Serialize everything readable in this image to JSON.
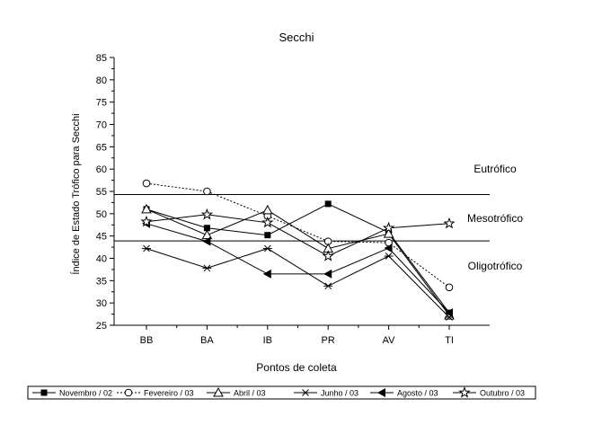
{
  "chart_data": {
    "type": "line",
    "title": "Secchi",
    "xlabel": "Pontos de coleta",
    "ylabel": "Índice de Estado Trófico para Secchi",
    "categories": [
      "BB",
      "BA",
      "IB",
      "PR",
      "AV",
      "TI"
    ],
    "ylim": [
      25,
      85
    ],
    "yticks": [
      25,
      30,
      35,
      40,
      45,
      50,
      55,
      60,
      65,
      70,
      75,
      80,
      85
    ],
    "grid": false,
    "legend_position": "bottom",
    "reference_lines": [
      {
        "value": 54.3
      },
      {
        "value": 43.9
      }
    ],
    "zones": [
      {
        "label": "Eutrófico",
        "y": 60
      },
      {
        "label": "Mesotrófico",
        "y": 49
      },
      {
        "label": "Oligotrófico",
        "y": 38.3
      }
    ],
    "series": [
      {
        "name": "Novembro / 02",
        "marker": "filled-square",
        "dashed": false,
        "values": [
          51,
          46.8,
          45.2,
          52.2,
          45.8,
          27.8
        ]
      },
      {
        "name": "Fevereiro / 03",
        "marker": "open-circle",
        "dashed": true,
        "values": [
          56.8,
          55,
          49.5,
          43.8,
          43.5,
          33.5
        ]
      },
      {
        "name": "Abril / 03",
        "marker": "open-triangle",
        "dashed": false,
        "values": [
          51,
          45.2,
          50.8,
          42.2,
          45.5,
          27.2
        ]
      },
      {
        "name": "Junho / 03",
        "marker": "asterisk",
        "dashed": false,
        "values": [
          42.2,
          37.8,
          42.2,
          33.8,
          40.5,
          26.8
        ]
      },
      {
        "name": "Agosto / 03",
        "marker": "filled-left-triangle",
        "dashed": false,
        "values": [
          47.8,
          43.8,
          36.5,
          36.5,
          42.3,
          27.8
        ]
      },
      {
        "name": "Outubro / 03",
        "marker": "open-star",
        "dashed": false,
        "values": [
          48.2,
          49.8,
          48,
          40.5,
          46.8,
          47.8
        ]
      }
    ]
  }
}
